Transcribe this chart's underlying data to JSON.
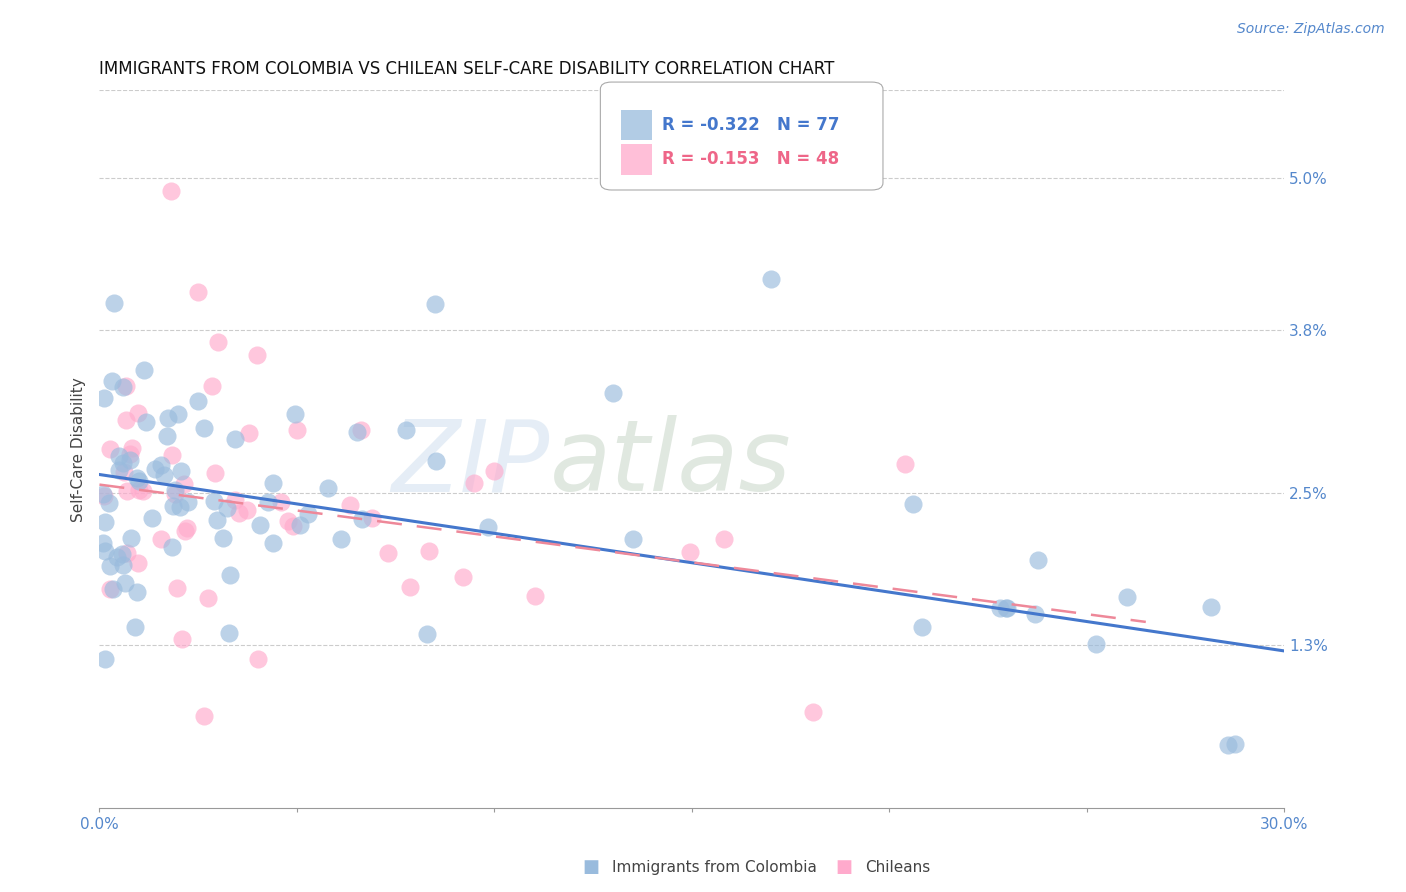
{
  "title": "IMMIGRANTS FROM COLOMBIA VS CHILEAN SELF-CARE DISABILITY CORRELATION CHART",
  "source": "Source: ZipAtlas.com",
  "ylabel": "Self-Care Disability",
  "ytick_labels": [
    "",
    "1.3%",
    "2.5%",
    "3.8%",
    "5.0%"
  ],
  "ytick_values": [
    0.0,
    0.013,
    0.025,
    0.038,
    0.05
  ],
  "xlim": [
    0.0,
    0.3
  ],
  "ylim": [
    0.0,
    0.057
  ],
  "legend_r1": "R = -0.322",
  "legend_n1": "N = 77",
  "legend_r2": "R = -0.153",
  "legend_n2": "N = 48",
  "color_blue": "#99BBDD",
  "color_pink": "#FFAACC",
  "color_blue_line": "#4477CC",
  "color_pink_line": "#EE8899",
  "watermark": "ZIPatlas",
  "blue_line_x0": 0.0,
  "blue_line_y0": 0.0265,
  "blue_line_x1": 0.3,
  "blue_line_y1": 0.0125,
  "pink_line_x0": 0.0,
  "pink_line_y0": 0.0257,
  "pink_line_x1": 0.265,
  "pink_line_y1": 0.0148
}
